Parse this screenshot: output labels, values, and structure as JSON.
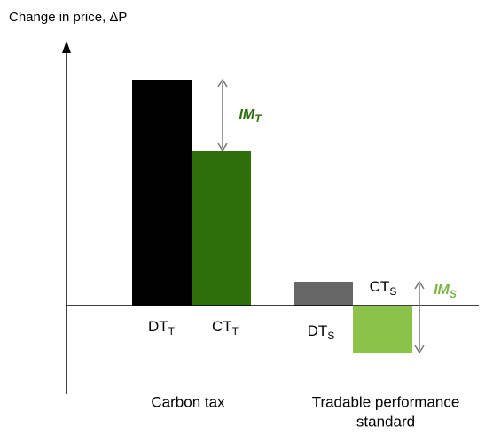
{
  "chart_data": {
    "type": "bar",
    "title": "Change in price, ΔP",
    "categories": [
      {
        "main": "DT",
        "sub": "T"
      },
      {
        "main": "CT",
        "sub": "T"
      },
      {
        "main": "DT",
        "sub": "S"
      },
      {
        "main": "CT",
        "sub": "S"
      }
    ],
    "values": [
      255,
      175,
      27,
      -53
    ],
    "colors": [
      "#000000",
      "#2e6f0b",
      "#666666",
      "#8bc34a"
    ],
    "ylim": [
      -100,
      295
    ],
    "groups": [
      [
        "Carbon tax"
      ],
      [
        "Tradable performance",
        "standard"
      ]
    ],
    "annotations": [
      {
        "main": "IM",
        "sub": "T",
        "color": "#2e6f0b"
      },
      {
        "main": "IM",
        "sub": "S",
        "color": "#7cb342"
      }
    ]
  }
}
